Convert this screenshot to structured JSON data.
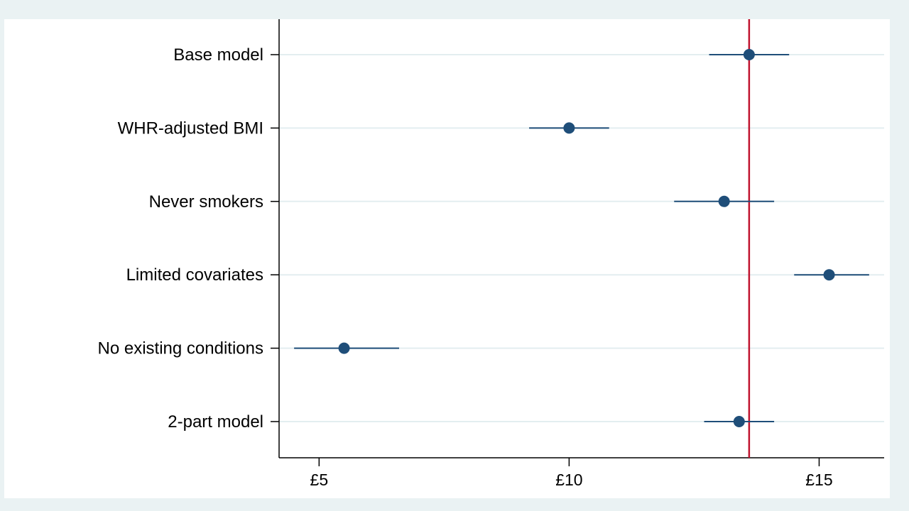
{
  "chart_data": {
    "type": "scatter",
    "subtype": "forest-plot",
    "categories": [
      "Base model",
      "WHR-adjusted BMI",
      "Never smokers",
      "Limited covariates",
      "No existing conditions",
      "2-part model"
    ],
    "estimates": [
      13.6,
      10.0,
      13.1,
      15.2,
      5.5,
      13.4
    ],
    "ci_lower": [
      12.8,
      9.2,
      12.1,
      14.5,
      4.5,
      12.7
    ],
    "ci_upper": [
      14.4,
      10.8,
      14.1,
      16.0,
      6.6,
      14.1
    ],
    "reference_line": 13.6,
    "x_ticks": [
      5,
      10,
      15
    ],
    "x_tick_labels": [
      "£5",
      "£10",
      "£15"
    ],
    "xlim": [
      4.2,
      16.3
    ],
    "xlabel": "",
    "ylabel": "",
    "title": "",
    "grid": "horizontal",
    "colors": {
      "marker": "#1f4e79",
      "reference": "#c0132e",
      "gridline": "#e3eef0",
      "outer_background": "#eaf2f3",
      "plot_background": "#ffffff"
    }
  }
}
